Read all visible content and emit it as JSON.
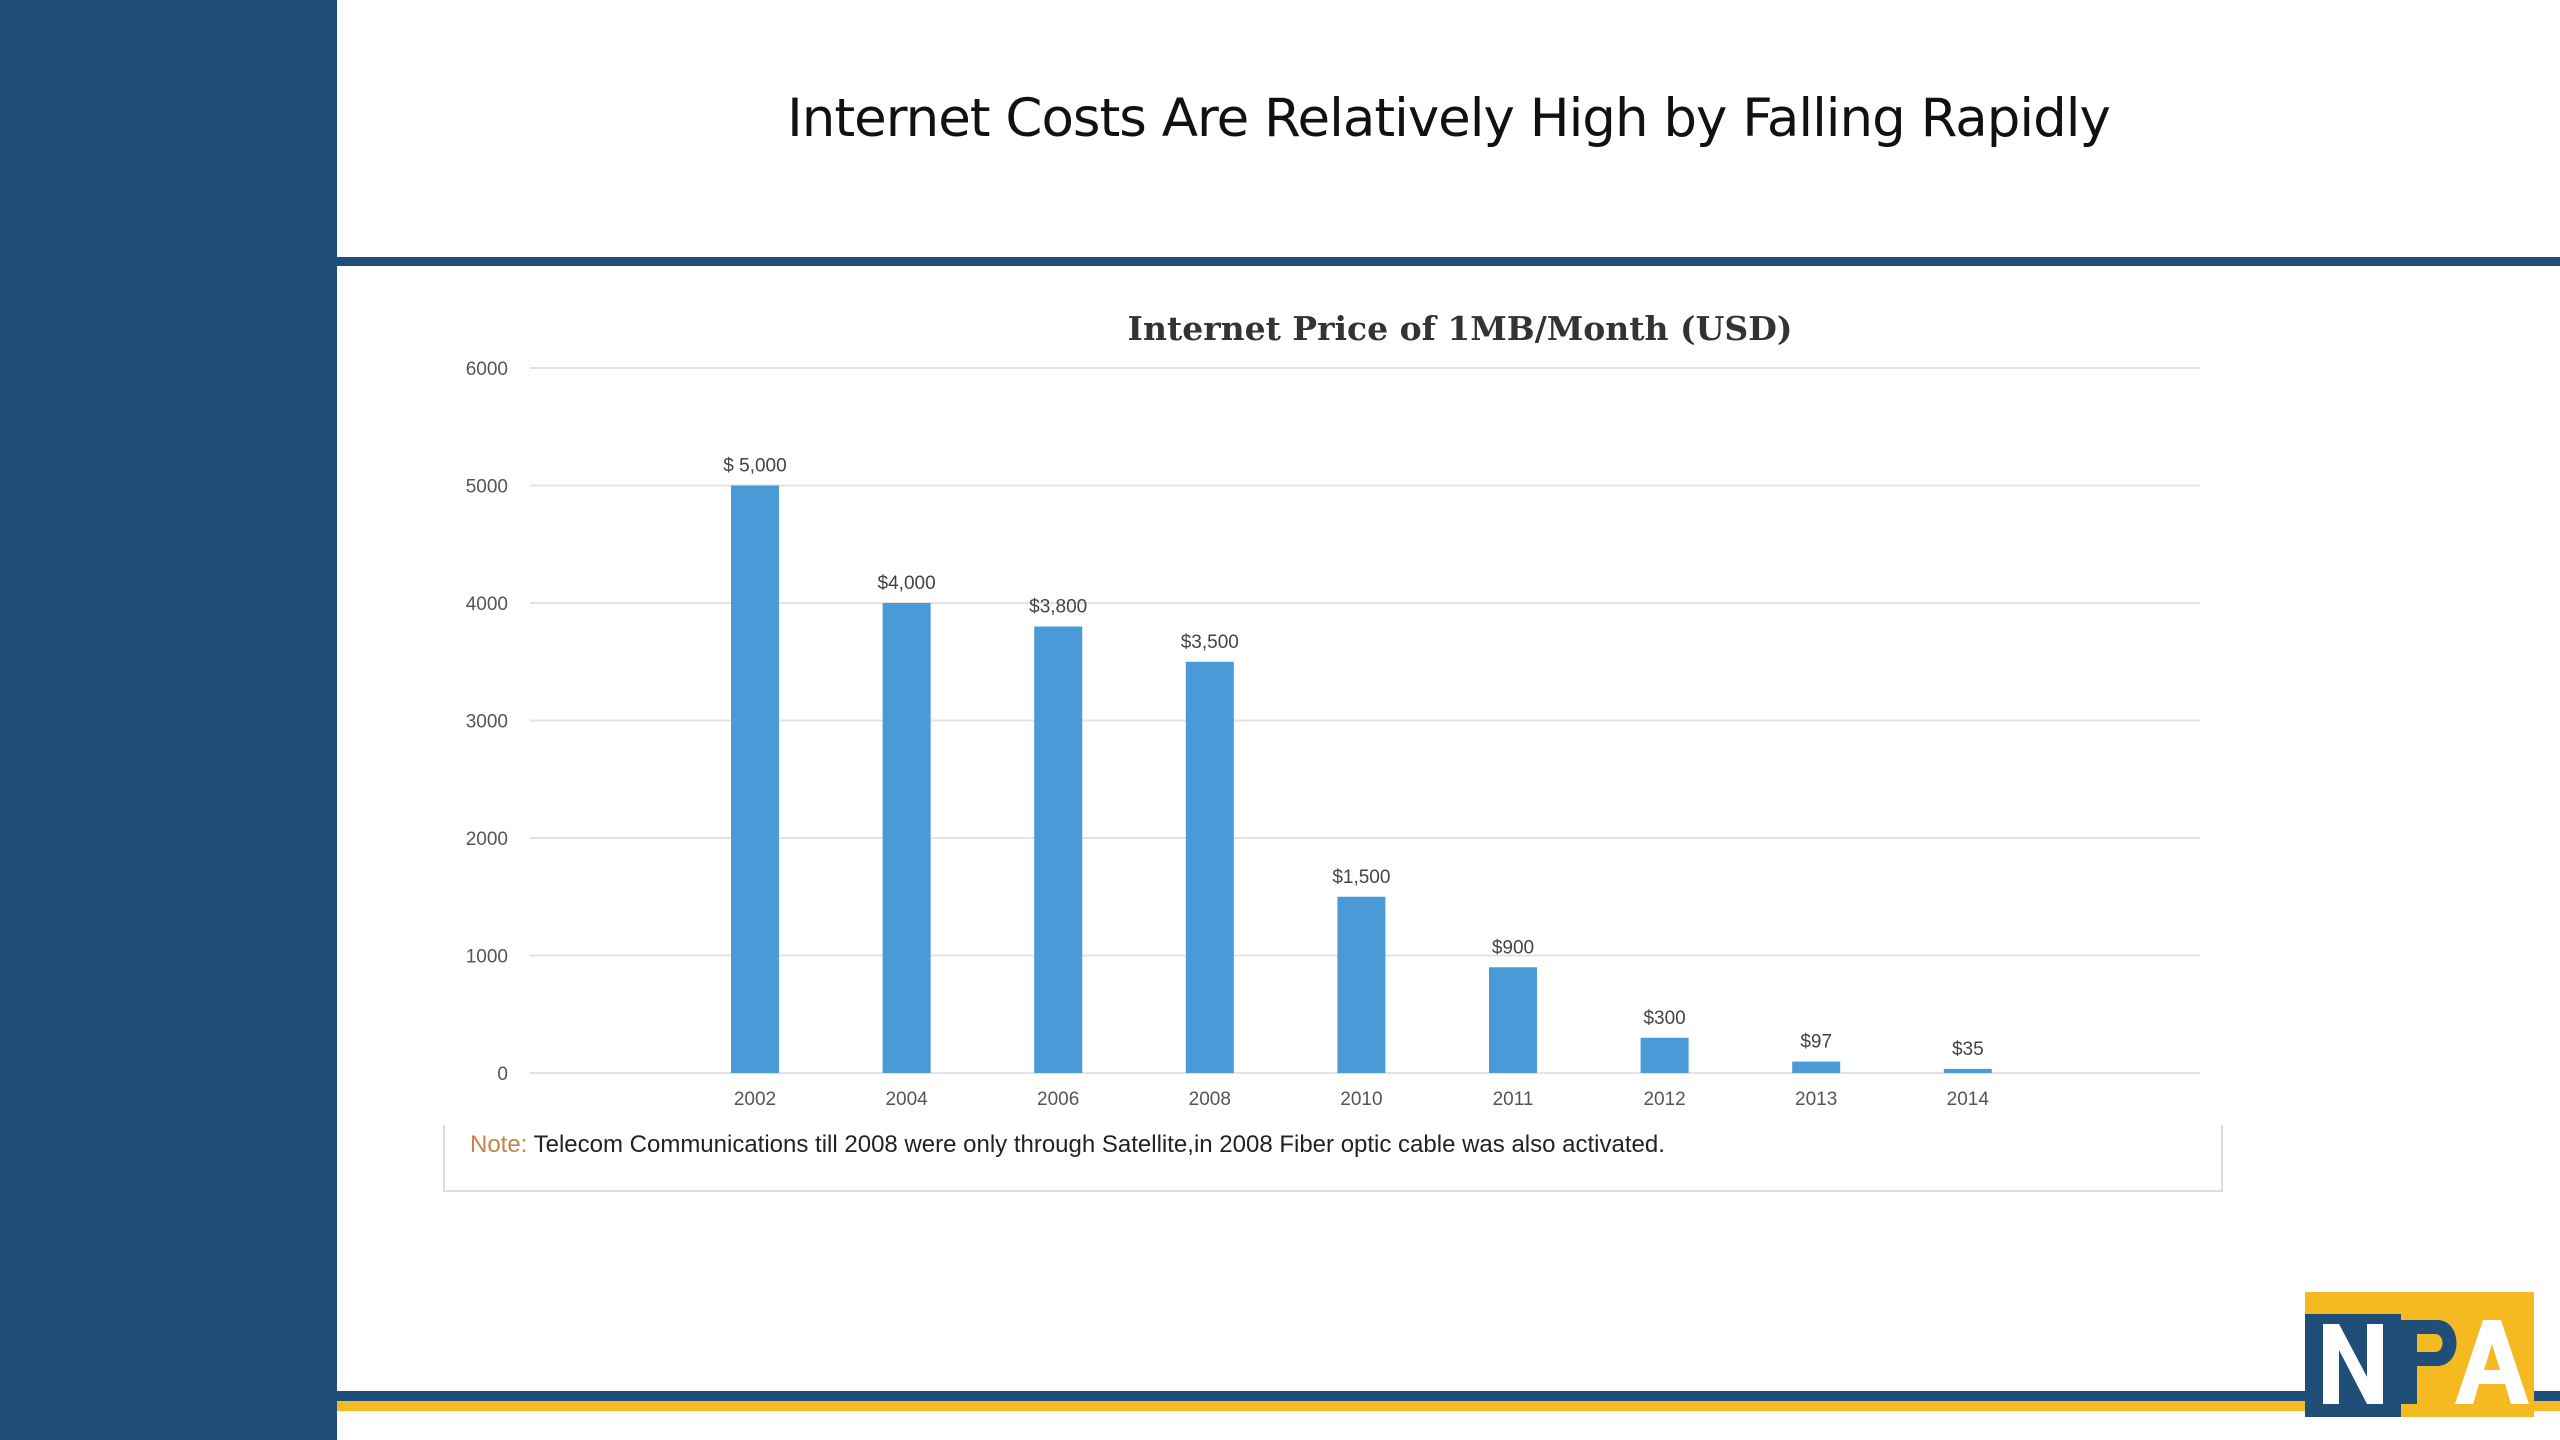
{
  "slide": {
    "title": "Internet Costs Are Relatively High by Falling Rapidly"
  },
  "note": {
    "label": "Note:",
    "text": " Telecom Communications till 2008 were only through Satellite,in 2008 Fiber optic cable was also activated."
  },
  "logo": {
    "text": "NPA",
    "colors": {
      "gold": "#f5b921",
      "blue": "#1f4e79"
    }
  },
  "colors": {
    "sidebar": "#1f4e79",
    "bar": "#4a9ad8",
    "accent_gold": "#f5b921"
  },
  "chart_data": {
    "type": "bar",
    "title": "Internet Price of 1MB/Month (USD)",
    "xlabel": "",
    "ylabel": "",
    "ylim": [
      0,
      6000
    ],
    "yticks": [
      0,
      1000,
      2000,
      3000,
      4000,
      5000,
      6000
    ],
    "grid": true,
    "categories": [
      "2002",
      "2004",
      "2006",
      "2008",
      "2010",
      "2011",
      "2012",
      "2013",
      "2014"
    ],
    "values": [
      5000,
      4000,
      3800,
      3500,
      1500,
      900,
      300,
      97,
      35
    ],
    "data_labels": [
      "$ 5,000",
      "$4,000",
      "$3,800",
      "$3,500",
      "$1,500",
      "$900",
      "$300",
      "$97",
      "$35"
    ]
  }
}
